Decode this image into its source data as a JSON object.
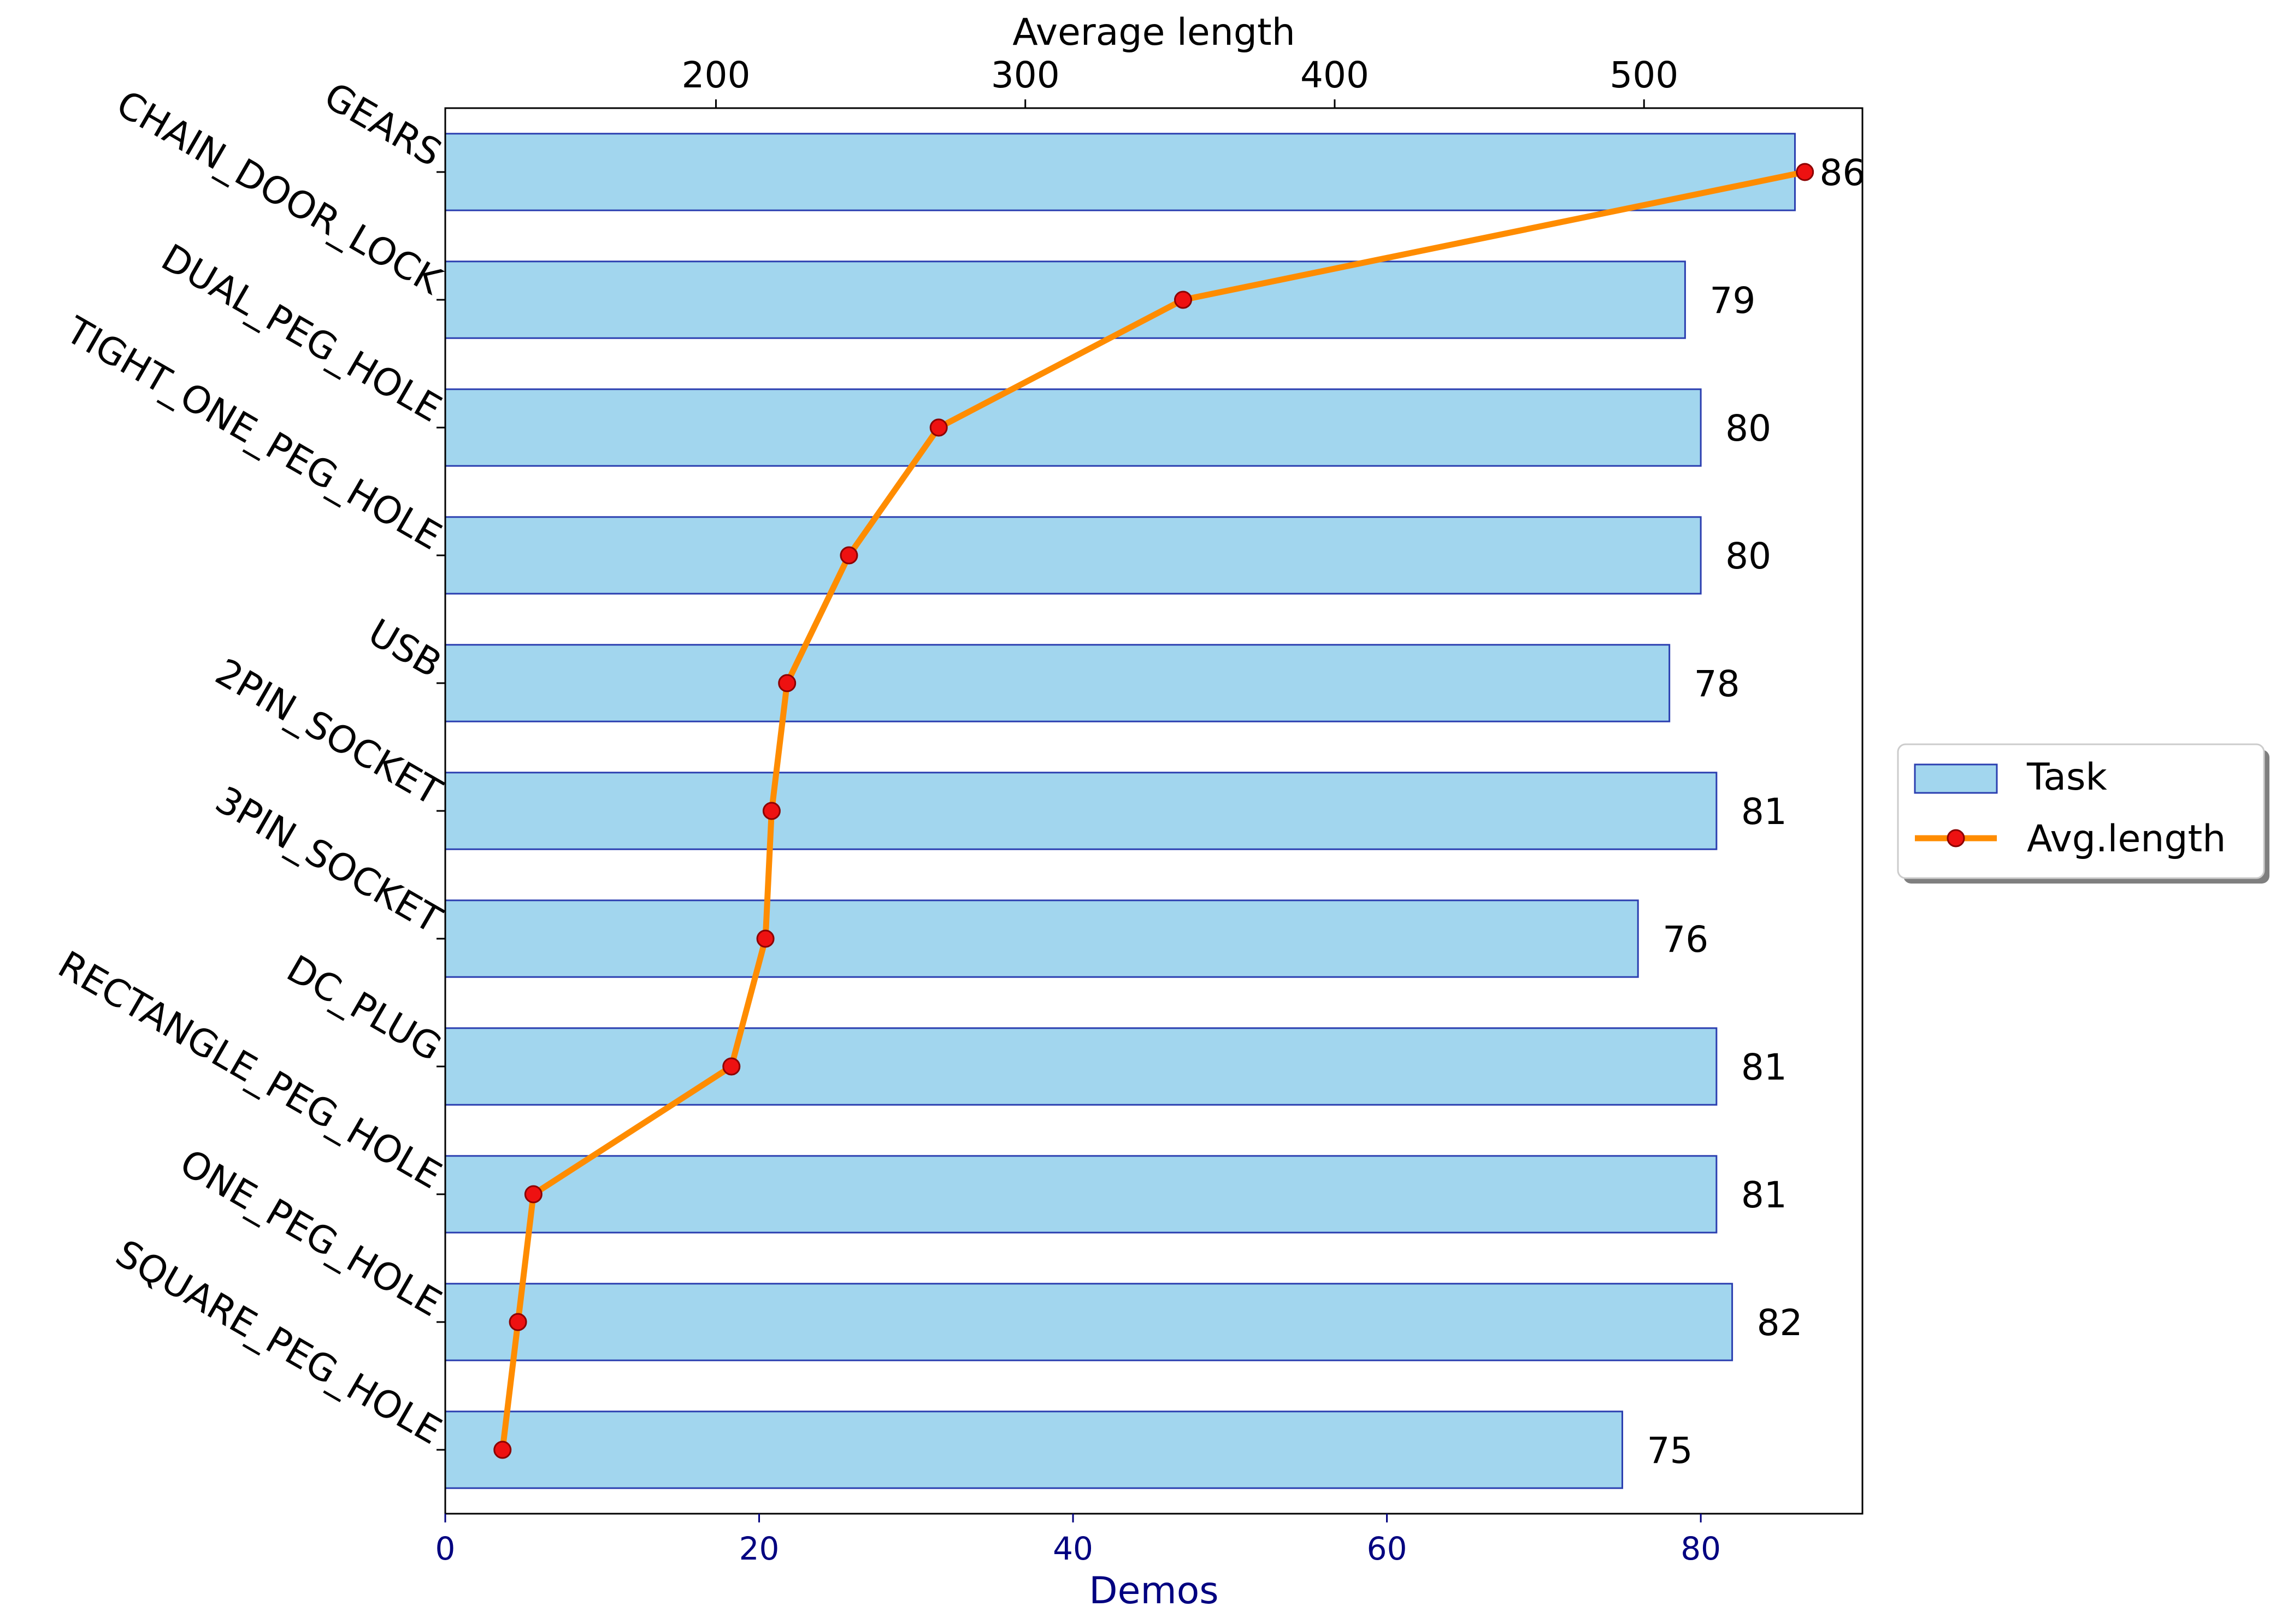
{
  "chart_data": {
    "type": "bar",
    "orientation": "horizontal",
    "categories": [
      "GEARS",
      "CHAIN_DOOR_LOCK",
      "DUAL_PEG_HOLE",
      "TIGHT_ONE_PEG_HOLE",
      "USB",
      "2PIN_SOCKET",
      "3PIN_SOCKET",
      "DC_PLUG",
      "RECTANGLE_PEG_HOLE",
      "ONE_PEG_HOLE",
      "SQUARE_PEG_HOLE"
    ],
    "series": [
      {
        "name": "Task",
        "type": "bar",
        "axis": "bottom",
        "values": [
          86,
          79,
          80,
          80,
          78,
          81,
          76,
          81,
          81,
          82,
          75
        ],
        "data_labels": [
          "86",
          "79",
          "80",
          "80",
          "78",
          "81",
          "76",
          "81",
          "81",
          "82",
          "75"
        ]
      },
      {
        "name": "Avg.length",
        "type": "line",
        "axis": "top",
        "values": [
          552,
          351,
          272,
          243,
          223,
          218,
          216,
          205,
          141,
          136,
          131
        ]
      }
    ],
    "xlabel_bottom": "Demos",
    "xlabel_top": "Average length",
    "xlim_bottom": [
      0,
      90.3
    ],
    "xlim_top": [
      112.5,
      570.6
    ],
    "xticks_bottom": [
      "0",
      "20",
      "40",
      "60",
      "80"
    ],
    "xticks_top": [
      "200",
      "300",
      "400",
      "500"
    ],
    "legend_position": "center-right",
    "grid": false,
    "colors": {
      "bar_fill": "#a2d6ee",
      "bar_edge": "#2b3fb0",
      "line": "#ff8c00",
      "marker_fill": "#ee1111",
      "marker_edge": "#8b0000",
      "bottom_axis": "#000080"
    }
  }
}
